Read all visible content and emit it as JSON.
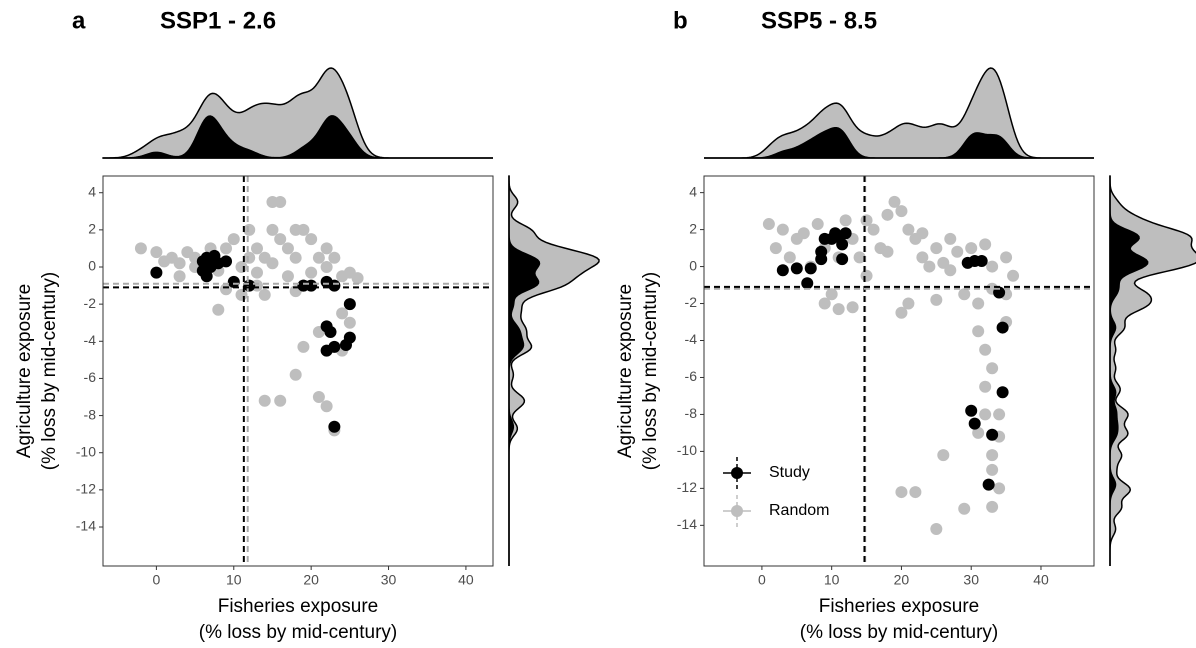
{
  "chart_data": [
    {
      "type": "scatter",
      "panel_label": "a",
      "title": "SSP1 - 2.6",
      "x_label": [
        "Fisheries exposure",
        "(% loss by mid-century)"
      ],
      "y_label": [
        "Agriculture exposure",
        "(% loss by mid-century)"
      ],
      "xlim": [
        -6.9,
        43.5
      ],
      "ylim": [
        -16.1,
        4.9
      ],
      "xticks": [
        0,
        10,
        20,
        30,
        40
      ],
      "yticks": [
        4,
        2,
        0,
        -2,
        -4,
        -6,
        -8,
        -10,
        -12,
        -14
      ],
      "vlines": [
        {
          "value": 11.8,
          "color": "#aaaaaa"
        },
        {
          "value": 11.3,
          "color": "#000000"
        }
      ],
      "hlines": [
        {
          "value": -0.9,
          "color": "#aaaaaa"
        },
        {
          "value": -1.1,
          "color": "#000000"
        }
      ],
      "series": [
        {
          "color": "#bebebe",
          "x": [
            -2,
            0,
            2,
            3,
            4,
            5,
            8,
            9,
            10,
            12,
            11,
            13,
            14,
            15,
            16,
            15,
            16,
            17,
            18,
            19,
            20,
            21,
            22,
            23,
            24,
            25,
            26,
            14,
            16,
            18,
            19,
            21,
            22,
            23,
            8,
            9,
            11,
            13,
            14,
            18,
            24,
            25,
            24,
            21,
            3,
            1,
            7,
            12,
            17,
            20,
            5,
            13,
            15,
            18,
            22,
            19
          ],
          "y": [
            1,
            0.8,
            0.5,
            0.2,
            0.8,
            0,
            -0.2,
            1,
            1.5,
            2,
            0,
            1,
            0.5,
            3.5,
            3.5,
            2,
            1.5,
            1,
            0.5,
            2,
            1.5,
            0.5,
            0,
            0.5,
            -0.5,
            -0.3,
            -0.6,
            -7.2,
            -7.2,
            -5.8,
            -4.3,
            -7,
            -7.5,
            -8.8,
            -2.3,
            -1.2,
            -1.5,
            -1,
            -1.5,
            -1.3,
            -2.5,
            -3,
            -4.5,
            -3.5,
            -0.5,
            0.3,
            1,
            0.5,
            -0.5,
            -0.3,
            0.5,
            -0.3,
            0.2,
            2,
            1,
            -1
          ]
        },
        {
          "color": "#000000",
          "x": [
            0,
            6,
            6.5,
            7,
            6,
            7,
            7.5,
            8,
            9,
            6.5,
            10,
            12,
            19,
            20,
            22,
            23,
            25,
            22,
            22.5,
            22,
            23,
            24.5,
            25,
            23
          ],
          "y": [
            -0.3,
            0.3,
            0.5,
            0.3,
            -0.2,
            0,
            0.6,
            0.2,
            0.3,
            -0.5,
            -0.8,
            -1,
            -1,
            -1,
            -0.8,
            -1,
            -2,
            -3.2,
            -3.5,
            -4.5,
            -4.3,
            -4.2,
            -3.8,
            -8.6
          ]
        }
      ]
    },
    {
      "type": "scatter",
      "panel_label": "b",
      "title": "SSP5 - 8.5",
      "x_label": [
        "Fisheries exposure",
        "(% loss by mid-century)"
      ],
      "y_label": [
        "Agriculture exposure",
        "(% loss by mid-century)"
      ],
      "xlim": [
        -8.3,
        47.6
      ],
      "ylim": [
        -16.2,
        4.9
      ],
      "xticks": [
        0,
        10,
        20,
        30,
        40
      ],
      "yticks": [
        4,
        2,
        0,
        -2,
        -4,
        -6,
        -8,
        -10,
        -12,
        -14
      ],
      "vlines": [
        {
          "value": 14.8,
          "color": "#aaaaaa"
        },
        {
          "value": 14.7,
          "color": "#000000"
        }
      ],
      "hlines": [
        {
          "value": -1.2,
          "color": "#aaaaaa"
        },
        {
          "value": -1.1,
          "color": "#000000"
        }
      ],
      "legend": "bottom-left",
      "series": [
        {
          "name": "Random",
          "color": "#bebebe",
          "x": [
            1,
            3,
            5,
            2,
            4,
            6,
            8,
            9,
            12,
            13,
            14,
            15,
            16,
            17,
            18,
            19,
            20,
            21,
            22,
            23,
            24,
            25,
            26,
            27,
            28,
            30,
            32,
            33,
            35,
            36,
            9,
            11,
            13,
            10,
            20,
            21,
            25,
            29,
            31,
            33,
            35,
            32,
            33,
            32,
            34,
            34,
            31,
            33,
            33,
            20,
            22,
            26,
            25,
            29,
            33,
            34,
            32,
            7,
            11,
            15,
            18,
            23,
            27,
            35,
            31
          ],
          "y": [
            2.3,
            2,
            1.5,
            1,
            0.5,
            1.8,
            2.3,
            1,
            2.5,
            1.5,
            0.5,
            2.5,
            2,
            1,
            2.8,
            3.5,
            3,
            2,
            1.5,
            0.5,
            0,
            1,
            0.2,
            -0.2,
            0.8,
            1,
            1.2,
            0,
            0.5,
            -0.5,
            -2,
            -2.3,
            -2.2,
            -1.5,
            -2.5,
            -2,
            -1.8,
            -1.5,
            -2,
            -1.2,
            -1.5,
            -4.5,
            -5.5,
            -6.5,
            -8,
            -9.2,
            -9,
            -10.2,
            -11,
            -12.2,
            -12.2,
            -10.2,
            -14.2,
            -13.1,
            -13,
            -12,
            -8,
            0,
            0.5,
            -0.5,
            0.8,
            1.8,
            1.5,
            -3,
            -3.5
          ]
        },
        {
          "name": "Study",
          "color": "#000000",
          "x": [
            3,
            5,
            7,
            6.5,
            8.5,
            8.5,
            9,
            10,
            10.5,
            11,
            11.5,
            12,
            11.5,
            29.5,
            30.5,
            31.5,
            34,
            34.5,
            34.5,
            30,
            30.5,
            33,
            32.5
          ],
          "y": [
            -0.2,
            -0.1,
            -0.1,
            -0.9,
            0.4,
            0.8,
            1.5,
            1.5,
            1.8,
            1.6,
            1.2,
            1.8,
            0.4,
            0.2,
            0.3,
            0.3,
            -1.4,
            -3.3,
            -6.8,
            -7.8,
            -8.5,
            -9.1,
            -11.8
          ]
        }
      ]
    }
  ]
}
